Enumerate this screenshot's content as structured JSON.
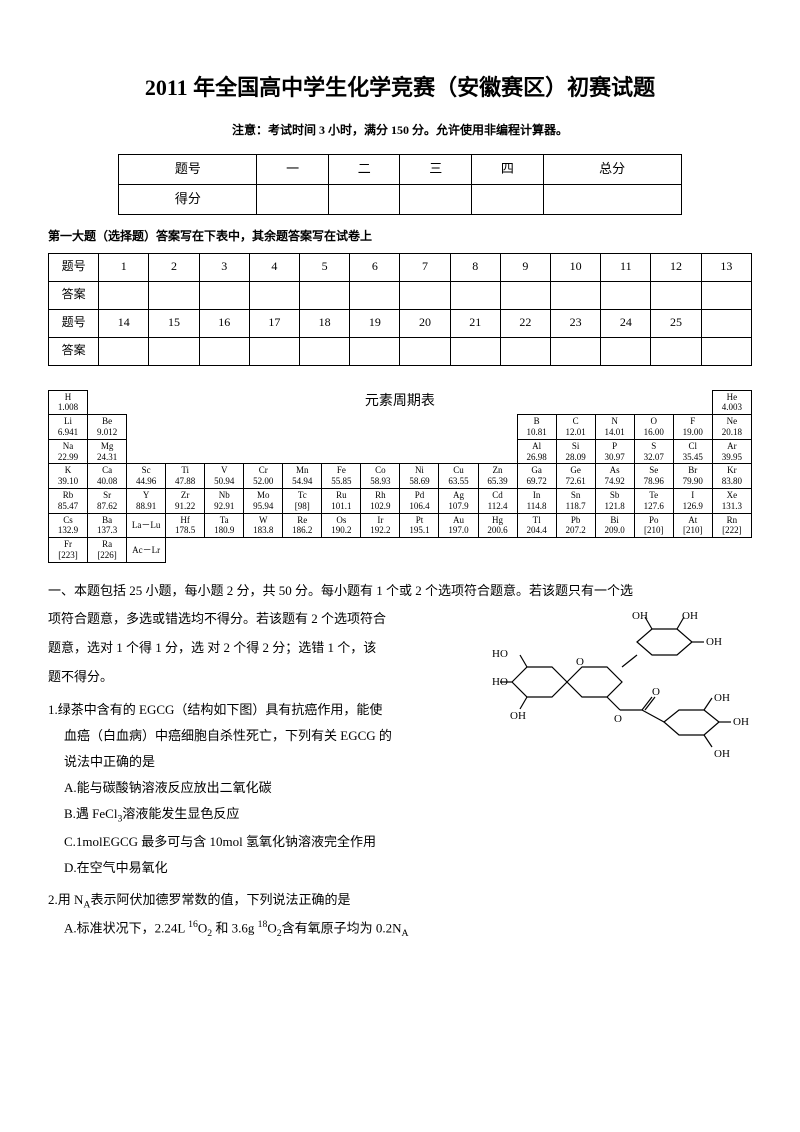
{
  "title": "2011 年全国高中学生化学竞赛（安徽赛区）初赛试题",
  "subtitle": "注意：考试时间 3 小时，满分 150 分。允许使用非编程计算器。",
  "score_table": {
    "headers": [
      "题号",
      "一",
      "二",
      "三",
      "四",
      "总分"
    ],
    "rows": [
      [
        "得分",
        "",
        "",
        "",
        "",
        ""
      ]
    ]
  },
  "section1_label": "第一大题（选择题）答案写在下表中，其余题答案写在试卷上",
  "answer_table": {
    "row_labels": [
      "题号",
      "答案",
      "题号",
      "答案"
    ],
    "numbers1": [
      "1",
      "2",
      "3",
      "4",
      "5",
      "6",
      "7",
      "8",
      "9",
      "10",
      "11",
      "12",
      "13"
    ],
    "numbers2": [
      "14",
      "15",
      "16",
      "17",
      "18",
      "19",
      "20",
      "21",
      "22",
      "23",
      "24",
      "25",
      ""
    ]
  },
  "periodic_title": "元素周期表",
  "periodic": {
    "r1": [
      {
        "s": "H",
        "m": "1.008"
      },
      null,
      null,
      null,
      null,
      null,
      null,
      null,
      null,
      null,
      null,
      null,
      null,
      null,
      null,
      null,
      null,
      {
        "s": "He",
        "m": "4.003"
      }
    ],
    "r2": [
      {
        "s": "Li",
        "m": "6.941"
      },
      {
        "s": "Be",
        "m": "9.012"
      },
      null,
      null,
      null,
      null,
      null,
      null,
      null,
      null,
      null,
      null,
      {
        "s": "B",
        "m": "10.81"
      },
      {
        "s": "C",
        "m": "12.01"
      },
      {
        "s": "N",
        "m": "14.01"
      },
      {
        "s": "O",
        "m": "16.00"
      },
      {
        "s": "F",
        "m": "19.00"
      },
      {
        "s": "Ne",
        "m": "20.18"
      }
    ],
    "r3": [
      {
        "s": "Na",
        "m": "22.99"
      },
      {
        "s": "Mg",
        "m": "24.31"
      },
      null,
      null,
      null,
      null,
      null,
      null,
      null,
      null,
      null,
      null,
      {
        "s": "Al",
        "m": "26.98"
      },
      {
        "s": "Si",
        "m": "28.09"
      },
      {
        "s": "P",
        "m": "30.97"
      },
      {
        "s": "S",
        "m": "32.07"
      },
      {
        "s": "Cl",
        "m": "35.45"
      },
      {
        "s": "Ar",
        "m": "39.95"
      }
    ],
    "r4": [
      {
        "s": "K",
        "m": "39.10"
      },
      {
        "s": "Ca",
        "m": "40.08"
      },
      {
        "s": "Sc",
        "m": "44.96"
      },
      {
        "s": "Ti",
        "m": "47.88"
      },
      {
        "s": "V",
        "m": "50.94"
      },
      {
        "s": "Cr",
        "m": "52.00"
      },
      {
        "s": "Mn",
        "m": "54.94"
      },
      {
        "s": "Fe",
        "m": "55.85"
      },
      {
        "s": "Co",
        "m": "58.93"
      },
      {
        "s": "Ni",
        "m": "58.69"
      },
      {
        "s": "Cu",
        "m": "63.55"
      },
      {
        "s": "Zn",
        "m": "65.39"
      },
      {
        "s": "Ga",
        "m": "69.72"
      },
      {
        "s": "Ge",
        "m": "72.61"
      },
      {
        "s": "As",
        "m": "74.92"
      },
      {
        "s": "Se",
        "m": "78.96"
      },
      {
        "s": "Br",
        "m": "79.90"
      },
      {
        "s": "Kr",
        "m": "83.80"
      }
    ],
    "r5": [
      {
        "s": "Rb",
        "m": "85.47"
      },
      {
        "s": "Sr",
        "m": "87.62"
      },
      {
        "s": "Y",
        "m": "88.91"
      },
      {
        "s": "Zr",
        "m": "91.22"
      },
      {
        "s": "Nb",
        "m": "92.91"
      },
      {
        "s": "Mo",
        "m": "95.94"
      },
      {
        "s": "Tc",
        "m": "[98]"
      },
      {
        "s": "Ru",
        "m": "101.1"
      },
      {
        "s": "Rh",
        "m": "102.9"
      },
      {
        "s": "Pd",
        "m": "106.4"
      },
      {
        "s": "Ag",
        "m": "107.9"
      },
      {
        "s": "Cd",
        "m": "112.4"
      },
      {
        "s": "In",
        "m": "114.8"
      },
      {
        "s": "Sn",
        "m": "118.7"
      },
      {
        "s": "Sb",
        "m": "121.8"
      },
      {
        "s": "Te",
        "m": "127.6"
      },
      {
        "s": "I",
        "m": "126.9"
      },
      {
        "s": "Xe",
        "m": "131.3"
      }
    ],
    "r6": [
      {
        "s": "Cs",
        "m": "132.9"
      },
      {
        "s": "Ba",
        "m": "137.3"
      },
      {
        "s": "La－Lu",
        "m": ""
      },
      {
        "s": "Hf",
        "m": "178.5"
      },
      {
        "s": "Ta",
        "m": "180.9"
      },
      {
        "s": "W",
        "m": "183.8"
      },
      {
        "s": "Re",
        "m": "186.2"
      },
      {
        "s": "Os",
        "m": "190.2"
      },
      {
        "s": "Ir",
        "m": "192.2"
      },
      {
        "s": "Pt",
        "m": "195.1"
      },
      {
        "s": "Au",
        "m": "197.0"
      },
      {
        "s": "Hg",
        "m": "200.6"
      },
      {
        "s": "Tl",
        "m": "204.4"
      },
      {
        "s": "Pb",
        "m": "207.2"
      },
      {
        "s": "Bi",
        "m": "209.0"
      },
      {
        "s": "Po",
        "m": "[210]"
      },
      {
        "s": "At",
        "m": "[210]"
      },
      {
        "s": "Rn",
        "m": "[222]"
      }
    ],
    "r7": [
      {
        "s": "Fr",
        "m": "[223]"
      },
      {
        "s": "Ra",
        "m": "[226]"
      },
      {
        "s": "Ac－Lr",
        "m": ""
      }
    ]
  },
  "instructions": {
    "p1": "一、本题包括 25 小题，每小题 2 分，共 50 分。每小题有 1 个或 2 个选项符合题意。若该题只有一个选",
    "p2": "项符合题意，多选或错选均不得分。若该题有 2 个选项符合",
    "p3": "题意，选对 1 个得 1 分，选  对 2 个得 2  分；选错 1 个，该",
    "p4": "题不得分。"
  },
  "q1": {
    "num": "1.",
    "text1": "绿茶中含有的 EGCG（结构如下图）具有抗癌作用，能使",
    "text2": "血癌（白血病）中癌细胞自杀性死亡，下列有关 EGCG 的",
    "text3": "说法中正确的是",
    "a": "A.能与碳酸钠溶液反应放出二氧化碳",
    "b_pre": "B.遇 FeCl",
    "b_post": "溶液能发生显色反应",
    "c": "C.1molEGCG 最多可与含 10mol 氢氧化钠溶液完全作用",
    "d": "D.在空气中易氧化"
  },
  "q2": {
    "num": "2.",
    "pre": "用 N",
    "post": "表示阿伏加德罗常数的值，下列说法正确的是",
    "a_pre": "A.标准状况下，2.24L ",
    "a_mid": " 和 3.6g ",
    "a_post": "含有氧原子均为 0.2N"
  },
  "colors": {
    "bg": "#ffffff",
    "text": "#000000",
    "border": "#000000"
  },
  "fonts": {
    "title_size": 22,
    "subtitle_size": 12,
    "body_size": 13,
    "table_size": 12,
    "periodic_size": 9
  }
}
